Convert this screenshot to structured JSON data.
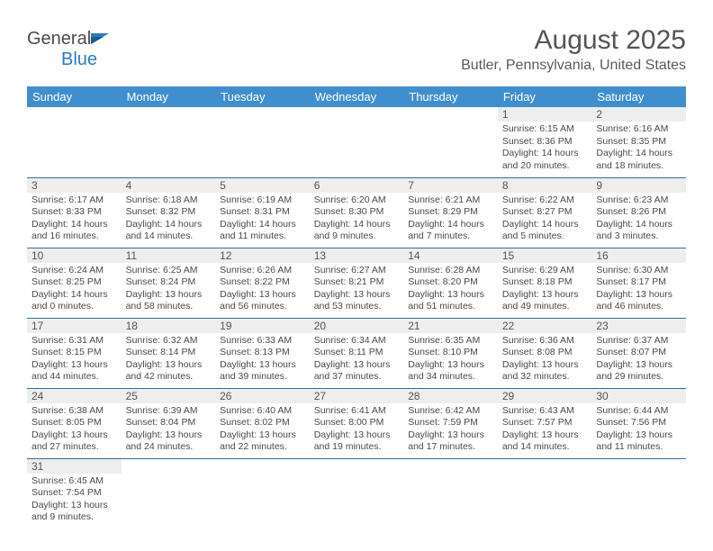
{
  "brand": {
    "name_part1": "General",
    "name_part2": "Blue"
  },
  "title": "August 2025",
  "location": "Butler, Pennsylvania, United States",
  "colors": {
    "header_bg": "#3f8fcf",
    "header_text": "#ffffff",
    "row_border": "#2f6fa8",
    "daynum_bg": "#eeeeee",
    "body_text": "#4a4a4a",
    "brand_blue": "#2b7bbf"
  },
  "typography": {
    "title_size_pt": 22,
    "location_size_pt": 12,
    "day_header_size_pt": 10,
    "cell_text_size_pt": 8
  },
  "calendar": {
    "day_headers": [
      "Sunday",
      "Monday",
      "Tuesday",
      "Wednesday",
      "Thursday",
      "Friday",
      "Saturday"
    ],
    "weeks": [
      [
        {
          "n": "",
          "t": ""
        },
        {
          "n": "",
          "t": ""
        },
        {
          "n": "",
          "t": ""
        },
        {
          "n": "",
          "t": ""
        },
        {
          "n": "",
          "t": ""
        },
        {
          "n": "1",
          "t": "Sunrise: 6:15 AM\nSunset: 8:36 PM\nDaylight: 14 hours and 20 minutes."
        },
        {
          "n": "2",
          "t": "Sunrise: 6:16 AM\nSunset: 8:35 PM\nDaylight: 14 hours and 18 minutes."
        }
      ],
      [
        {
          "n": "3",
          "t": "Sunrise: 6:17 AM\nSunset: 8:33 PM\nDaylight: 14 hours and 16 minutes."
        },
        {
          "n": "4",
          "t": "Sunrise: 6:18 AM\nSunset: 8:32 PM\nDaylight: 14 hours and 14 minutes."
        },
        {
          "n": "5",
          "t": "Sunrise: 6:19 AM\nSunset: 8:31 PM\nDaylight: 14 hours and 11 minutes."
        },
        {
          "n": "6",
          "t": "Sunrise: 6:20 AM\nSunset: 8:30 PM\nDaylight: 14 hours and 9 minutes."
        },
        {
          "n": "7",
          "t": "Sunrise: 6:21 AM\nSunset: 8:29 PM\nDaylight: 14 hours and 7 minutes."
        },
        {
          "n": "8",
          "t": "Sunrise: 6:22 AM\nSunset: 8:27 PM\nDaylight: 14 hours and 5 minutes."
        },
        {
          "n": "9",
          "t": "Sunrise: 6:23 AM\nSunset: 8:26 PM\nDaylight: 14 hours and 3 minutes."
        }
      ],
      [
        {
          "n": "10",
          "t": "Sunrise: 6:24 AM\nSunset: 8:25 PM\nDaylight: 14 hours and 0 minutes."
        },
        {
          "n": "11",
          "t": "Sunrise: 6:25 AM\nSunset: 8:24 PM\nDaylight: 13 hours and 58 minutes."
        },
        {
          "n": "12",
          "t": "Sunrise: 6:26 AM\nSunset: 8:22 PM\nDaylight: 13 hours and 56 minutes."
        },
        {
          "n": "13",
          "t": "Sunrise: 6:27 AM\nSunset: 8:21 PM\nDaylight: 13 hours and 53 minutes."
        },
        {
          "n": "14",
          "t": "Sunrise: 6:28 AM\nSunset: 8:20 PM\nDaylight: 13 hours and 51 minutes."
        },
        {
          "n": "15",
          "t": "Sunrise: 6:29 AM\nSunset: 8:18 PM\nDaylight: 13 hours and 49 minutes."
        },
        {
          "n": "16",
          "t": "Sunrise: 6:30 AM\nSunset: 8:17 PM\nDaylight: 13 hours and 46 minutes."
        }
      ],
      [
        {
          "n": "17",
          "t": "Sunrise: 6:31 AM\nSunset: 8:15 PM\nDaylight: 13 hours and 44 minutes."
        },
        {
          "n": "18",
          "t": "Sunrise: 6:32 AM\nSunset: 8:14 PM\nDaylight: 13 hours and 42 minutes."
        },
        {
          "n": "19",
          "t": "Sunrise: 6:33 AM\nSunset: 8:13 PM\nDaylight: 13 hours and 39 minutes."
        },
        {
          "n": "20",
          "t": "Sunrise: 6:34 AM\nSunset: 8:11 PM\nDaylight: 13 hours and 37 minutes."
        },
        {
          "n": "21",
          "t": "Sunrise: 6:35 AM\nSunset: 8:10 PM\nDaylight: 13 hours and 34 minutes."
        },
        {
          "n": "22",
          "t": "Sunrise: 6:36 AM\nSunset: 8:08 PM\nDaylight: 13 hours and 32 minutes."
        },
        {
          "n": "23",
          "t": "Sunrise: 6:37 AM\nSunset: 8:07 PM\nDaylight: 13 hours and 29 minutes."
        }
      ],
      [
        {
          "n": "24",
          "t": "Sunrise: 6:38 AM\nSunset: 8:05 PM\nDaylight: 13 hours and 27 minutes."
        },
        {
          "n": "25",
          "t": "Sunrise: 6:39 AM\nSunset: 8:04 PM\nDaylight: 13 hours and 24 minutes."
        },
        {
          "n": "26",
          "t": "Sunrise: 6:40 AM\nSunset: 8:02 PM\nDaylight: 13 hours and 22 minutes."
        },
        {
          "n": "27",
          "t": "Sunrise: 6:41 AM\nSunset: 8:00 PM\nDaylight: 13 hours and 19 minutes."
        },
        {
          "n": "28",
          "t": "Sunrise: 6:42 AM\nSunset: 7:59 PM\nDaylight: 13 hours and 17 minutes."
        },
        {
          "n": "29",
          "t": "Sunrise: 6:43 AM\nSunset: 7:57 PM\nDaylight: 13 hours and 14 minutes."
        },
        {
          "n": "30",
          "t": "Sunrise: 6:44 AM\nSunset: 7:56 PM\nDaylight: 13 hours and 11 minutes."
        }
      ],
      [
        {
          "n": "31",
          "t": "Sunrise: 6:45 AM\nSunset: 7:54 PM\nDaylight: 13 hours and 9 minutes."
        },
        {
          "n": "",
          "t": ""
        },
        {
          "n": "",
          "t": ""
        },
        {
          "n": "",
          "t": ""
        },
        {
          "n": "",
          "t": ""
        },
        {
          "n": "",
          "t": ""
        },
        {
          "n": "",
          "t": ""
        }
      ]
    ]
  }
}
